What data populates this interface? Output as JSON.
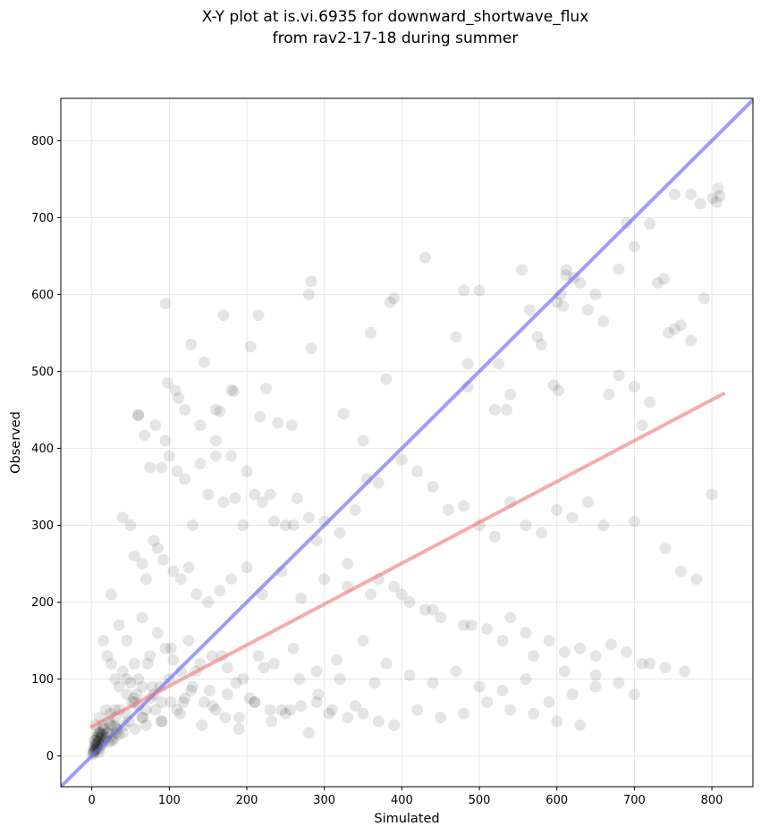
{
  "chart_data": {
    "type": "scatter",
    "title": "X-Y plot at is.vi.6935 for downward_shortwave_flux",
    "subtitle": "from rav2-17-18 during summer",
    "xlabel": "Simulated",
    "ylabel": "Observed",
    "xlim": [
      -40,
      853
    ],
    "ylim": [
      -40,
      855
    ],
    "xticks": [
      0,
      100,
      200,
      300,
      400,
      500,
      600,
      700,
      800
    ],
    "yticks": [
      0,
      100,
      200,
      300,
      400,
      500,
      600,
      700,
      800
    ],
    "grid": true,
    "colors": {
      "points": "#000000",
      "one_to_one_line": "#6a6af5",
      "fit_line": "#f08080",
      "grid": "#e6e6e6"
    },
    "lines": [
      {
        "name": "1:1",
        "x": [
          -40,
          853
        ],
        "y": [
          -40,
          853
        ]
      },
      {
        "name": "fit",
        "x": [
          0,
          815
        ],
        "y": [
          38,
          471
        ]
      }
    ],
    "series": [
      {
        "x": [
          95,
          60,
          170,
          215,
          280,
          283,
          385,
          390,
          430,
          480,
          500,
          555,
          600,
          612,
          622,
          680,
          690,
          700,
          720,
          752,
          773,
          785,
          801,
          806,
          808,
          810,
          98,
          108,
          112,
          128,
          145,
          160,
          165,
          180,
          183,
          205,
          217,
          225,
          240,
          258,
          283,
          325,
          350,
          360,
          380,
          470,
          485,
          485,
          520,
          525,
          535,
          540,
          565,
          575,
          580,
          596,
          602,
          605,
          608,
          612,
          630,
          640,
          650,
          660,
          667,
          680,
          700,
          710,
          720,
          730,
          738,
          744,
          752,
          760,
          773,
          790,
          60,
          68,
          75,
          82,
          90,
          95,
          100,
          110,
          120,
          130,
          140,
          150,
          160,
          170,
          185,
          195,
          210,
          220,
          235,
          250,
          265,
          280,
          300,
          320,
          340,
          355,
          370,
          400,
          420,
          440,
          460,
          480,
          500,
          520,
          540,
          560,
          580,
          600,
          620,
          640,
          660,
          700,
          740,
          760,
          780,
          800,
          40,
          50,
          55,
          65,
          70,
          80,
          85,
          92,
          105,
          115,
          125,
          135,
          150,
          165,
          180,
          200,
          220,
          245,
          270,
          300,
          330,
          360,
          390,
          410,
          430,
          450,
          480,
          510,
          540,
          560,
          590,
          610,
          630,
          650,
          670,
          690,
          720,
          25,
          35,
          45,
          55,
          65,
          75,
          85,
          95,
          105,
          115,
          125,
          140,
          155,
          175,
          195,
          215,
          235,
          260,
          290,
          320,
          350,
          380,
          410,
          440,
          470,
          500,
          530,
          560,
          590,
          620,
          650,
          680,
          710,
          740,
          765,
          15,
          20,
          25,
          30,
          35,
          40,
          45,
          50,
          55,
          60,
          65,
          70,
          80,
          90,
          100,
          110,
          120,
          130,
          145,
          160,
          175,
          190,
          210,
          230,
          250,
          270,
          290,
          310,
          330,
          350,
          370,
          390,
          420,
          450,
          480,
          510,
          540,
          570,
          600,
          630,
          5,
          8,
          10,
          12,
          14,
          16,
          18,
          20,
          22,
          24,
          26,
          28,
          30,
          33,
          36,
          40,
          44,
          48,
          52,
          56,
          60,
          65,
          70,
          76,
          82,
          90,
          2,
          3,
          4,
          5,
          6,
          7,
          8,
          9,
          10,
          11,
          12,
          13,
          14,
          15,
          16,
          18,
          20,
          22,
          24,
          26,
          28,
          30,
          32,
          35,
          1,
          2,
          3,
          4,
          5,
          6,
          7,
          8,
          9,
          10,
          3,
          5,
          7,
          9,
          11,
          13,
          120,
          140,
          160,
          180,
          200,
          230,
          260,
          290,
          330,
          370,
          400,
          440,
          490,
          530,
          570,
          610,
          650,
          700,
          45,
          58,
          72,
          88,
          102,
          118,
          134,
          152,
          168,
          186,
          204,
          222,
          245,
          268,
          292,
          316,
          340,
          365,
          30,
          42,
          54,
          66,
          78,
          90,
          102,
          114,
          128,
          142,
          156,
          172,
          190,
          210,
          232,
          256,
          280,
          306
        ],
        "y": [
          588,
          443,
          573,
          573,
          600,
          617,
          590,
          595,
          648,
          605,
          605,
          632,
          590,
          632,
          622,
          633,
          693,
          662,
          692,
          730,
          730,
          718,
          725,
          720,
          738,
          728,
          485,
          475,
          465,
          535,
          512,
          450,
          448,
          476,
          474,
          532,
          441,
          478,
          433,
          430,
          530,
          445,
          410,
          550,
          490,
          545,
          510,
          480,
          450,
          510,
          450,
          470,
          580,
          545,
          535,
          482,
          475,
          600,
          585,
          625,
          615,
          580,
          600,
          565,
          470,
          495,
          480,
          430,
          460,
          615,
          620,
          550,
          555,
          560,
          540,
          595,
          443,
          417,
          375,
          430,
          375,
          410,
          390,
          370,
          360,
          300,
          380,
          340,
          390,
          330,
          335,
          300,
          340,
          330,
          305,
          300,
          335,
          310,
          305,
          290,
          320,
          360,
          355,
          385,
          370,
          350,
          320,
          325,
          300,
          285,
          330,
          300,
          290,
          320,
          310,
          330,
          300,
          305,
          270,
          240,
          230,
          340,
          310,
          300,
          260,
          250,
          230,
          280,
          270,
          255,
          240,
          230,
          245,
          210,
          200,
          215,
          230,
          245,
          210,
          240,
          205,
          230,
          220,
          210,
          220,
          200,
          190,
          180,
          170,
          165,
          180,
          160,
          150,
          135,
          140,
          130,
          145,
          135,
          120,
          210,
          170,
          150,
          120,
          180,
          130,
          160,
          140,
          125,
          110,
          150,
          120,
          130,
          115,
          100,
          130,
          120,
          140,
          110,
          100,
          150,
          120,
          105,
          95,
          110,
          90,
          85,
          100,
          70,
          80,
          105,
          95,
          120,
          115,
          110,
          150,
          130,
          120,
          100,
          90,
          110,
          80,
          95,
          70,
          100,
          90,
          60,
          80,
          70,
          100,
          60,
          75,
          90,
          70,
          60,
          80,
          50,
          70,
          60,
          55,
          65,
          70,
          60,
          50,
          55,
          45,
          40,
          60,
          50,
          55,
          70,
          60,
          55,
          45,
          40,
          40,
          30,
          50,
          25,
          40,
          35,
          60,
          30,
          45,
          55,
          20,
          40,
          50,
          35,
          60,
          30,
          55,
          45,
          70,
          35,
          65,
          50,
          40,
          75,
          60,
          45,
          5,
          12,
          8,
          20,
          15,
          10,
          25,
          18,
          30,
          22,
          14,
          28,
          16,
          35,
          20,
          24,
          30,
          18,
          40,
          26,
          22,
          38,
          30,
          28,
          2,
          6,
          4,
          10,
          8,
          14,
          12,
          18,
          5,
          9,
          20,
          16,
          25,
          22,
          30,
          28,
          450,
          430,
          410,
          390,
          370,
          340,
          300,
          280,
          250,
          230,
          210,
          190,
          170,
          150,
          130,
          110,
          90,
          80,
          100,
          80,
          120,
          90,
          140,
          70,
          110,
          85,
          130,
          95,
          75,
          115,
          60,
          100,
          80,
          125,
          65,
          95,
          60,
          40,
          75,
          50,
          90,
          45,
          70,
          55,
          85,
          40,
          65,
          50,
          35,
          70,
          45,
          60,
          30,
          55
        ]
      }
    ]
  }
}
